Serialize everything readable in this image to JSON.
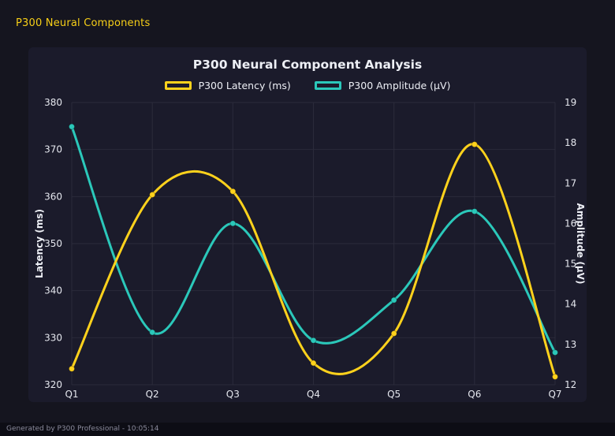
{
  "theme": {
    "page-bg": "#15151f",
    "panel-bg": "#1b1b2b",
    "accent": "#f7cf17",
    "text": "#edeff5",
    "muted": "#8b8b9c",
    "footer-bg": "#0d0d15"
  },
  "window": {
    "header_title": "P300 Neural Components",
    "footer_text": "Generated by P300 Professional - 10:05:14"
  },
  "chart_data": {
    "type": "line",
    "title": "P300 Neural Component Analysis",
    "categories": [
      "Q1",
      "Q2",
      "Q3",
      "Q4",
      "Q5",
      "Q6",
      "Q7"
    ],
    "series": [
      {
        "name": "P300 Latency (ms)",
        "axis": "left",
        "color": "#ffd21c",
        "values": [
          323.4,
          360.4,
          361.1,
          324.6,
          330.9,
          371.1,
          321.7
        ]
      },
      {
        "name": "P300 Amplitude (μV)",
        "axis": "right",
        "color": "#2bc8ba",
        "values": [
          18.4,
          13.3,
          16.0,
          13.1,
          14.1,
          16.3,
          12.8
        ]
      }
    ],
    "left_axis": {
      "label": "Latency (ms)",
      "min": 320,
      "max": 380,
      "step": 10
    },
    "right_axis": {
      "label": "Amplitude (μV)",
      "min": 12,
      "max": 19,
      "step": 1
    },
    "grid": true,
    "legend_position": "top",
    "grid_color": "#2b2b3b",
    "tick_color": "#e5e7ee"
  }
}
